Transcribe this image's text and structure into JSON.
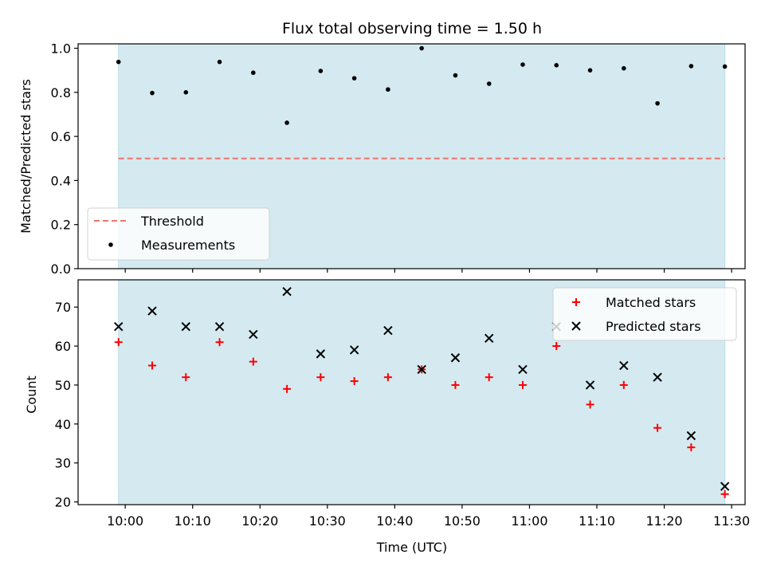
{
  "chart_data": [
    {
      "type": "scatter",
      "title": "Flux total observing time = 1.50 h",
      "xlabel": "",
      "ylabel": "Matched/Predicted stars",
      "ylim": [
        0.0,
        1.02
      ],
      "yticks": [
        "0.0",
        "0.2",
        "0.4",
        "0.6",
        "0.8",
        "1.0"
      ],
      "x_range": [
        "09:53",
        "11:32"
      ],
      "shaded_interval": [
        "09:59",
        "11:29"
      ],
      "shade_color": "#d4eaf0",
      "grid": false,
      "legend_position": "lower-left",
      "threshold": {
        "name": "Threshold",
        "value": 0.5,
        "color": "#f07470",
        "style": "dashed"
      },
      "series": [
        {
          "name": "Measurements",
          "marker": "dot",
          "color": "#000000",
          "x": [
            "09:59",
            "10:04",
            "10:09",
            "10:14",
            "10:19",
            "10:24",
            "10:29",
            "10:34",
            "10:39",
            "10:44",
            "10:49",
            "10:54",
            "10:59",
            "11:04",
            "11:09",
            "11:14",
            "11:19",
            "11:24",
            "11:29"
          ],
          "values": [
            0.938,
            0.797,
            0.8,
            0.938,
            0.889,
            0.662,
            0.897,
            0.864,
            0.813,
            1.0,
            0.877,
            0.839,
            0.926,
            0.923,
            0.9,
            0.909,
            0.75,
            0.919,
            0.917
          ]
        }
      ]
    },
    {
      "type": "scatter",
      "title": "",
      "xlabel": "Time (UTC)",
      "ylabel": "Count",
      "ylim": [
        19.3,
        77
      ],
      "yticks": [
        "20",
        "30",
        "40",
        "50",
        "60",
        "70"
      ],
      "xticks": [
        "10:00",
        "10:10",
        "10:20",
        "10:30",
        "10:40",
        "10:50",
        "11:00",
        "11:10",
        "11:20",
        "11:30"
      ],
      "x_range": [
        "09:53",
        "11:32"
      ],
      "shaded_interval": [
        "09:59",
        "11:29"
      ],
      "shade_color": "#d4eaf0",
      "grid": false,
      "legend_position": "upper-right",
      "series": [
        {
          "name": "Matched stars",
          "marker": "plus",
          "color": "#ff0000",
          "x": [
            "09:59",
            "10:04",
            "10:09",
            "10:14",
            "10:19",
            "10:24",
            "10:29",
            "10:34",
            "10:39",
            "10:44",
            "10:49",
            "10:54",
            "10:59",
            "11:04",
            "11:09",
            "11:14",
            "11:19",
            "11:24",
            "11:29"
          ],
          "values": [
            61,
            55,
            52,
            61,
            56,
            49,
            52,
            51,
            52,
            54,
            50,
            52,
            50,
            60,
            45,
            50,
            39,
            34,
            22
          ]
        },
        {
          "name": "Predicted stars",
          "marker": "x",
          "color": "#000000",
          "x": [
            "09:59",
            "10:04",
            "10:09",
            "10:14",
            "10:19",
            "10:24",
            "10:29",
            "10:34",
            "10:39",
            "10:44",
            "10:49",
            "10:54",
            "10:59",
            "11:04",
            "11:09",
            "11:14",
            "11:19",
            "11:24",
            "11:29"
          ],
          "values": [
            65,
            69,
            65,
            65,
            63,
            74,
            58,
            59,
            64,
            54,
            57,
            62,
            54,
            65,
            50,
            55,
            52,
            37,
            24
          ]
        }
      ]
    }
  ]
}
